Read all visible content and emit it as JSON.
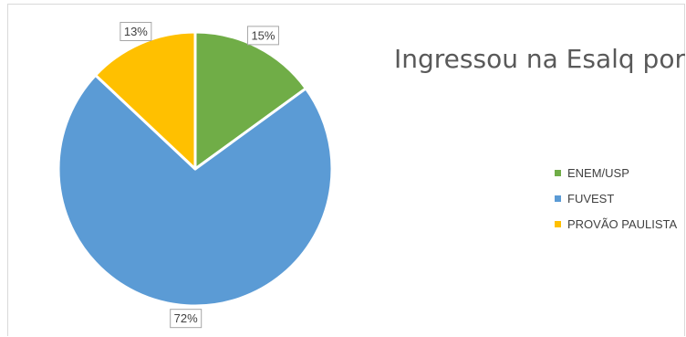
{
  "chart_data": {
    "type": "pie",
    "title": "Ingressou na Esalq por",
    "categories": [
      "ENEM/USP",
      "FUVEST",
      "PROVÃO PAULISTA"
    ],
    "values": [
      15,
      72,
      13
    ],
    "data_labels": [
      "15%",
      "72%",
      "13%"
    ],
    "colors": [
      "#70ad47",
      "#5b9bd5",
      "#ffc000"
    ],
    "legend": "right",
    "start_angle_deg": 0,
    "direction": "clockwise"
  }
}
